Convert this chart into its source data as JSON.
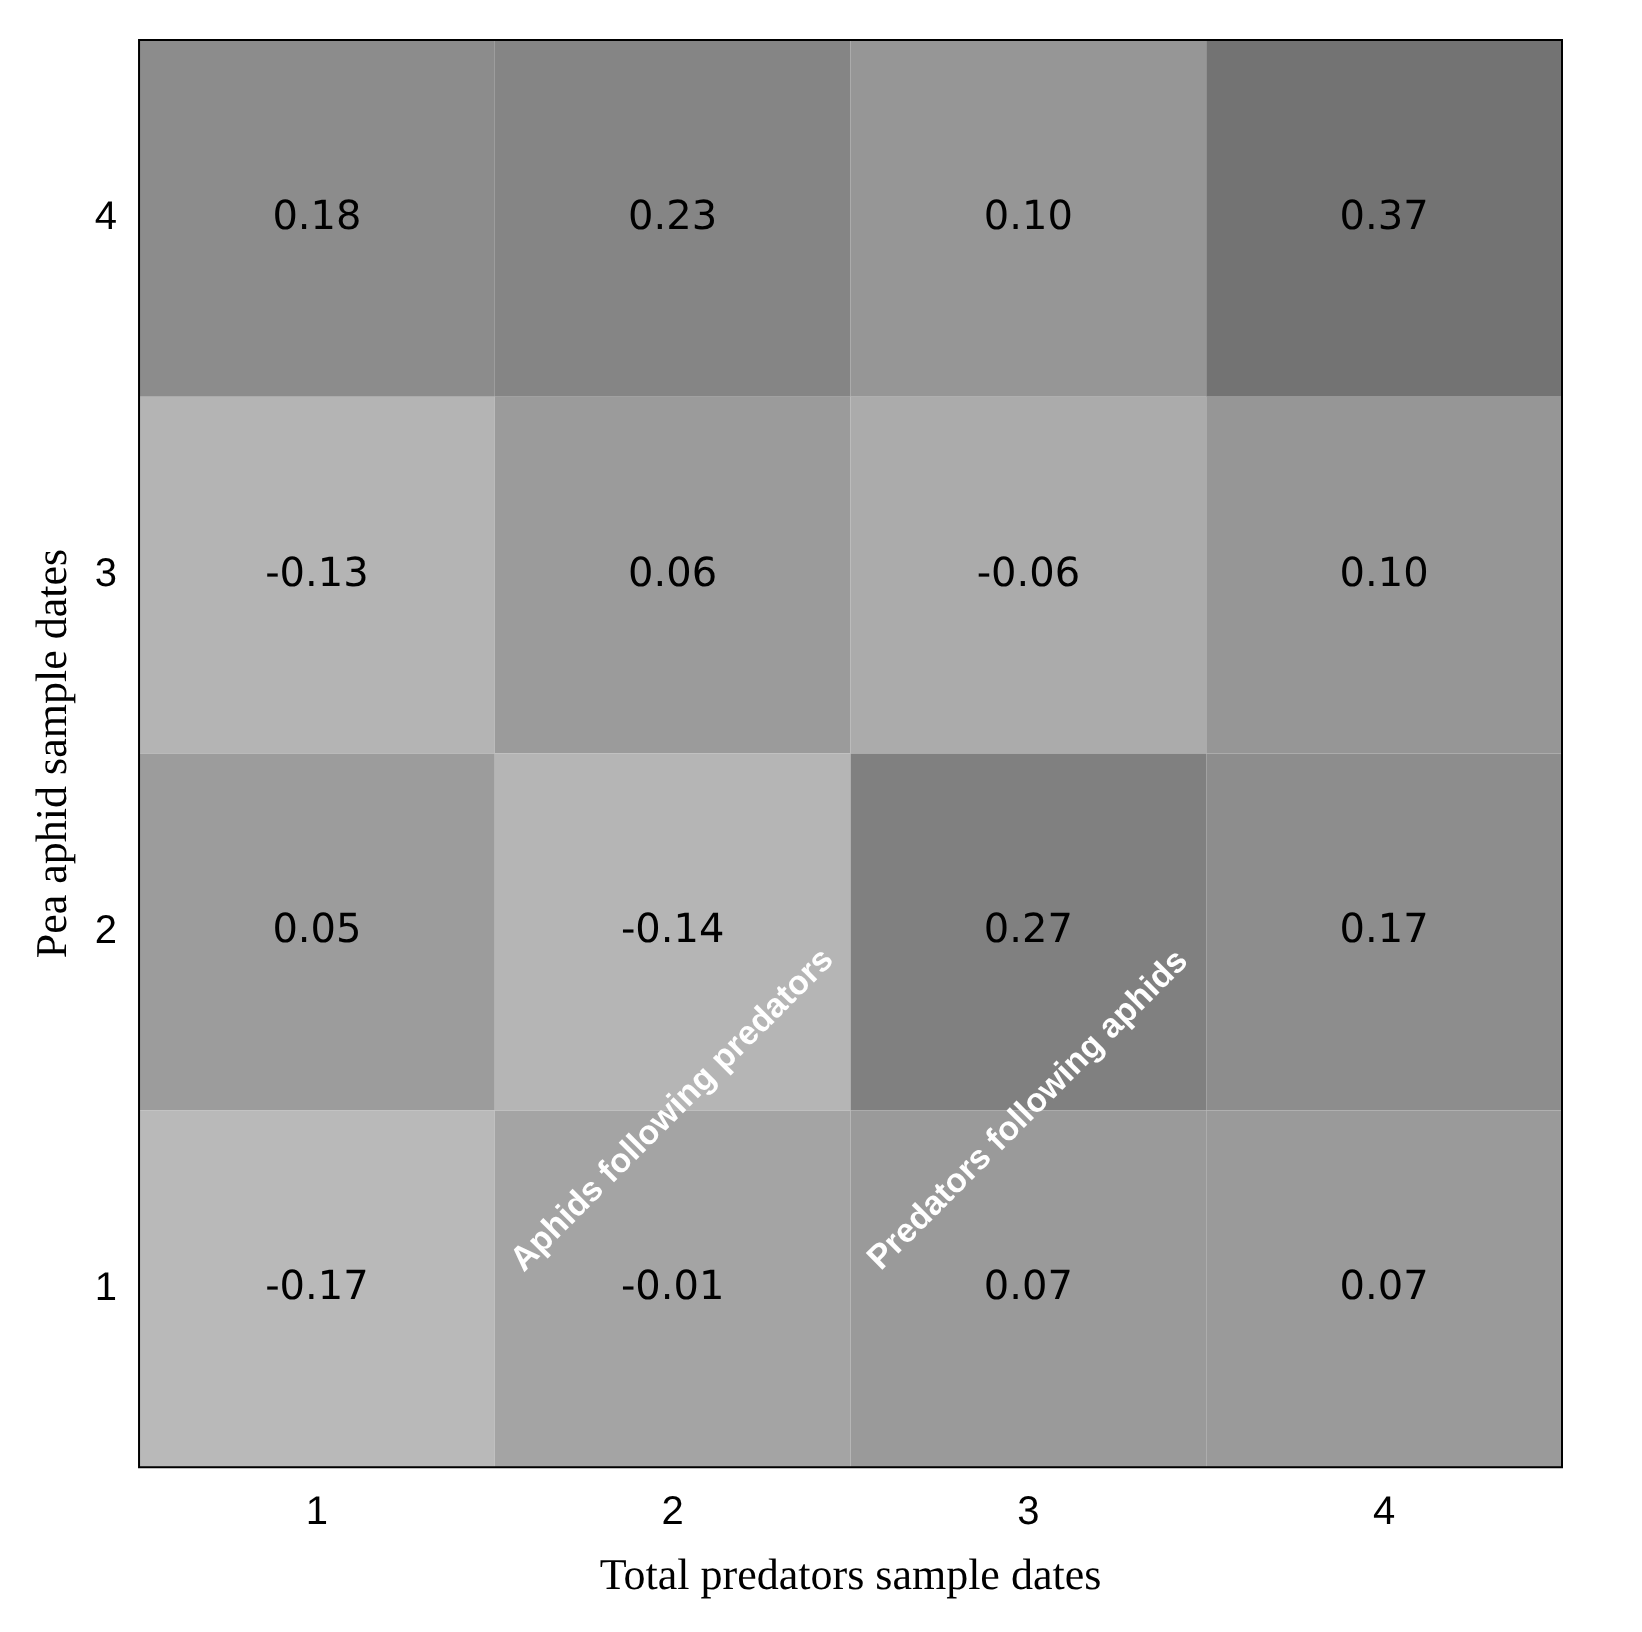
{
  "chart_data": {
    "type": "heatmap",
    "xlabel": "Total predators sample dates",
    "ylabel": "Pea aphid sample dates",
    "categories": [
      "1",
      "2",
      "3",
      "4"
    ],
    "y_categories": [
      "4",
      "3",
      "2",
      "1"
    ],
    "cells": [
      [
        0.18,
        0.23,
        0.1,
        0.37
      ],
      [
        -0.13,
        0.06,
        -0.06,
        0.1
      ],
      [
        0.05,
        -0.14,
        0.27,
        0.17
      ],
      [
        -0.17,
        -0.01,
        0.07,
        0.07
      ]
    ],
    "cell_labels": [
      [
        "0.18",
        "0.23",
        "0.10",
        "0.37"
      ],
      [
        "-0.13",
        "0.06",
        "-0.06",
        "0.10"
      ],
      [
        "0.05",
        "-0.14",
        "0.27",
        "0.17"
      ],
      [
        "-0.17",
        "-0.01",
        "0.07",
        "0.07"
      ]
    ],
    "annotations": [
      "Aphids following predators",
      "Predators following aphids"
    ]
  }
}
